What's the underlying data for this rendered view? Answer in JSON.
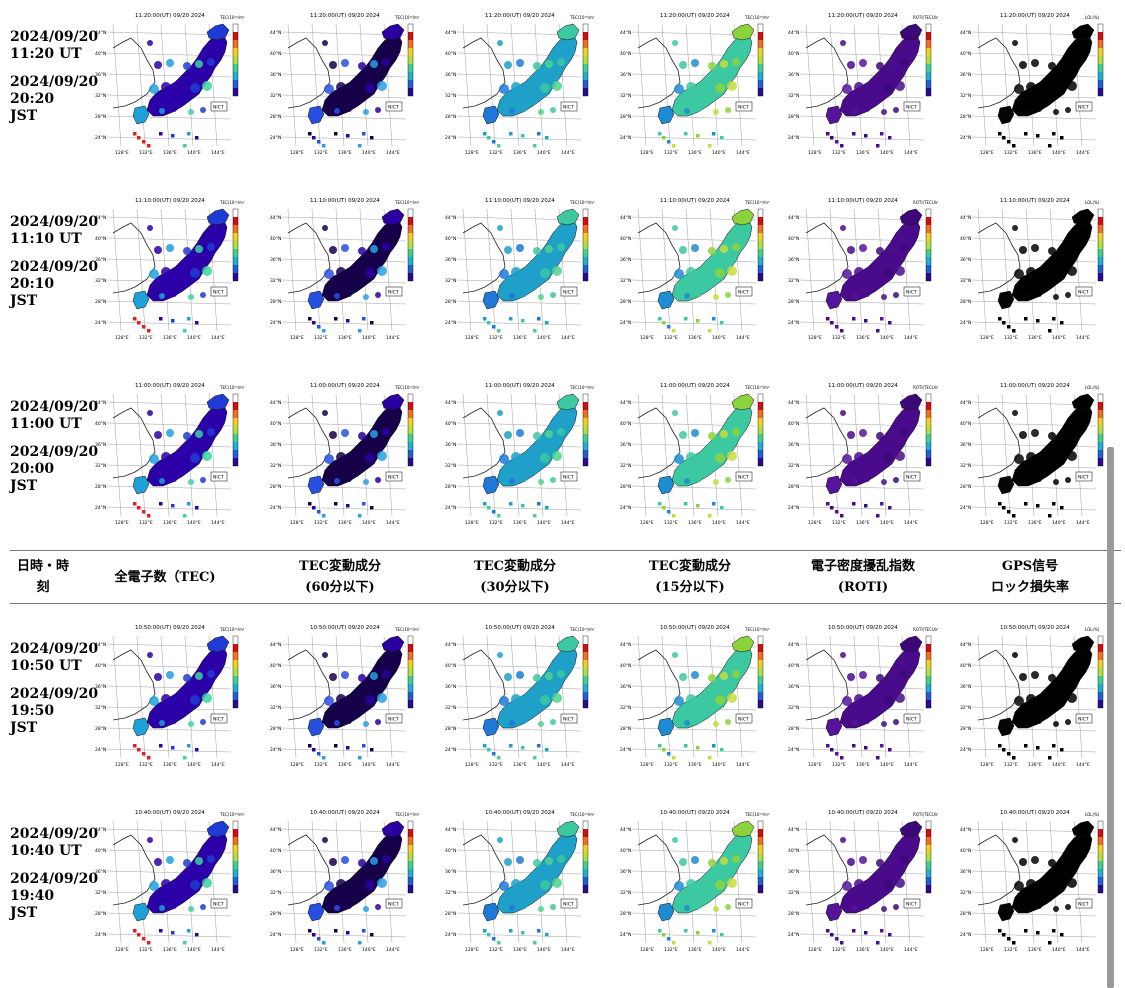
{
  "rows": [
    {
      "ut_date": "2024/09/20",
      "ut_time": "11:20 UT",
      "jst_date": "2024/09/20",
      "jst_time": "20:20",
      "jst_label": "JST",
      "stamp": "11:20:00(UT) 09/20 2024"
    },
    {
      "ut_date": "2024/09/20",
      "ut_time": "11:10 UT",
      "jst_date": "2024/09/20",
      "jst_time": "20:10",
      "jst_label": "JST",
      "stamp": "11:10:00(UT) 09/20 2024"
    },
    {
      "ut_date": "2024/09/20",
      "ut_time": "11:00 UT",
      "jst_date": "2024/09/20",
      "jst_time": "20:00",
      "jst_label": "JST",
      "stamp": "11:00:00(UT) 09/20 2024"
    },
    {
      "ut_date": "2024/09/20",
      "ut_time": "10:50 UT",
      "jst_date": "2024/09/20",
      "jst_time": "19:50",
      "jst_label": "JST",
      "stamp": "10:50:00(UT) 09/20 2024"
    },
    {
      "ut_date": "2024/09/20",
      "ut_time": "10:40 UT",
      "jst_date": "2024/09/20",
      "jst_time": "19:40",
      "jst_label": "JST",
      "stamp": "10:40:00(UT) 09/20 2024"
    }
  ],
  "header": {
    "datetime_1": "日時・時",
    "datetime_2": "刻",
    "columns": [
      {
        "line1": "全電子数（TEC)",
        "line2": ""
      },
      {
        "line1": "TEC変動成分",
        "line2": "(60分以下)"
      },
      {
        "line1": "TEC変動成分",
        "line2": "(30分以下)"
      },
      {
        "line1": "TEC変動成分",
        "line2": "(15分以下)"
      },
      {
        "line1": "電子密度擾乱指数",
        "line2": "(ROTI)"
      },
      {
        "line1": "GPS信号",
        "line2": "ロック損失率"
      }
    ]
  },
  "map_labels": {
    "lat": [
      "44°N",
      "40°N",
      "36°N",
      "32°N",
      "28°N",
      "24°N"
    ],
    "lon": [
      "128°E",
      "132°E",
      "136°E",
      "140°E",
      "144°E"
    ],
    "nict": "NICT"
  },
  "colorbar_titles": [
    "TEC(10¹⁶/m²)",
    "TEC(10¹⁶/m²)",
    "TEC(10¹⁶/m²)",
    "TEC(10¹⁶/m²)",
    "ROTI(TECU/min)",
    "LOL(%)"
  ],
  "palette": {
    "tec": [
      "#2b00a8",
      "#1e3cd4",
      "#1ea0d8",
      "#3cd2a0"
    ],
    "tec_hot": "#e02020",
    "d60": [
      "#16004a",
      "#2a00a0",
      "#2850e0",
      "#28a0e0"
    ],
    "d30": [
      "#1ea0c8",
      "#3cc8a0",
      "#1e78d8",
      "#50d28c"
    ],
    "d15": [
      "#3cc8a0",
      "#8cd23c",
      "#1e8cd2",
      "#c8dc3c"
    ],
    "roti": [
      "#4a0a8c",
      "#3c0878",
      "#56149a",
      "#46108a"
    ],
    "lol": [
      "#000000",
      "#000000",
      "#050505",
      "#000000"
    ],
    "colorbar": [
      "#2b0a8c",
      "#2060d0",
      "#20b0d0",
      "#40d090",
      "#b0e040",
      "#f0d020",
      "#f07020",
      "#d01010"
    ]
  }
}
